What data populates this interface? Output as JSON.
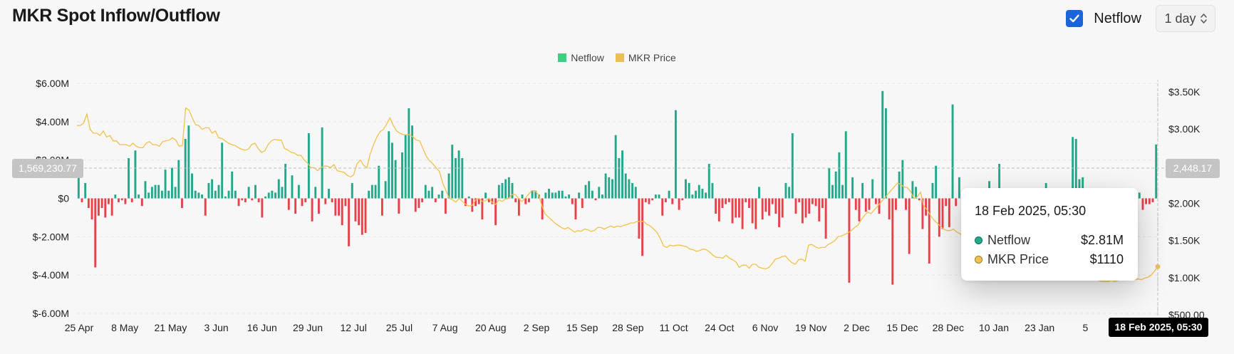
{
  "header": {
    "title": "MKR Spot Inflow/Outflow",
    "checkbox_label": "Netflow",
    "checkbox_checked": true,
    "interval": "1 day"
  },
  "colors": {
    "positive": "#22a98b",
    "negative": "#e8414a",
    "price": "#f2c14e",
    "legend_netflow": "#3ecf83",
    "legend_price": "#ecc050"
  },
  "tooltip": {
    "date": "18 Feb 2025, 05:30",
    "rows": [
      {
        "name": "Netflow",
        "value": "$2.81M",
        "color": "#22a98b"
      },
      {
        "name": "MKR Price",
        "value": "$1110",
        "color": "#f2c14e"
      }
    ]
  },
  "crosshair": {
    "left_value": "1,569,230.77",
    "right_value": "2,448.17",
    "date": "18 Feb 2025, 05:30"
  },
  "chart_data": {
    "type": "bar",
    "legend": [
      {
        "name": "Netflow",
        "color": "#3ecf83"
      },
      {
        "name": "MKR Price",
        "color": "#ecc050"
      }
    ],
    "y_left": {
      "ticks": [
        "$6.00M",
        "$4.00M",
        "$2.00M",
        "$0",
        "$-2.00M",
        "$-4.00M",
        "$-6.00M"
      ],
      "range": [
        -6000000,
        6000000
      ]
    },
    "y_right": {
      "ticks": [
        "$3.50K",
        "$3.00K",
        "$2.50K",
        "$2.00K",
        "$1.50K",
        "$1.00K",
        "$500.00"
      ],
      "range": [
        500,
        3500
      ]
    },
    "x_ticks": [
      "25 Apr",
      "8 May",
      "21 May",
      "3 Jun",
      "16 Jun",
      "29 Jun",
      "12 Jul",
      "25 Jul",
      "7 Aug",
      "20 Aug",
      "2 Sep",
      "15 Sep",
      "28 Sep",
      "11 Oct",
      "24 Oct",
      "6 Nov",
      "19 Nov",
      "2 Dec",
      "15 Dec",
      "28 Dec",
      "10 Jan",
      "23 Jan",
      "5"
    ],
    "x_range": [
      "2024-04-25",
      "2025-02-18"
    ],
    "netflow_millions": [
      1.1,
      -0.2,
      0.8,
      -0.5,
      -1.1,
      -3.6,
      -0.9,
      -0.5,
      -1.0,
      -0.3,
      -0.9,
      0.2,
      -0.2,
      -0.1,
      -0.3,
      2.1,
      -0.2,
      2.5,
      0.2,
      -0.4,
      0.9,
      0.3,
      0.6,
      0.7,
      0.7,
      0.4,
      1.5,
      0.4,
      1.6,
      0.6,
      2.0,
      -0.5,
      3.1,
      3.8,
      1.3,
      0.4,
      0.3,
      0.2,
      -0.9,
      0.8,
      1.0,
      0.4,
      0.7,
      2.9,
      0.1,
      0.4,
      1.4,
      0.4,
      -0.4,
      -0.1,
      -0.2,
      0.6,
      -0.1,
      0.7,
      -0.2,
      -1.0,
      0.1,
      0.3,
      0.4,
      0.3,
      1.0,
      0.6,
      1.8,
      -0.6,
      1.2,
      -0.8,
      0.7,
      -0.4,
      -0.2,
      3.4,
      -1.2,
      0.6,
      -0.8,
      3.7,
      -0.3,
      0.5,
      -0.2,
      -0.9,
      -0.9,
      -1.4,
      -0.4,
      -2.5,
      0.8,
      -1.2,
      -1.4,
      -1.9,
      -1.8,
      0.4,
      0.7,
      0.7,
      1.7,
      -0.9,
      0.9,
      3.5,
      2.9,
      2.0,
      -0.8,
      2.4,
      3.3,
      4.7,
      3.8,
      -0.7,
      -0.5,
      -0.2,
      0.7,
      0.4,
      0.6,
      -0.2,
      0.2,
      0.4,
      -0.8,
      1.3,
      2.8,
      2.1,
      2.5,
      2.1,
      -0.4,
      0.1,
      -0.7,
      -0.4,
      -0.3,
      -1.1,
      0.3,
      -0.2,
      -0.3,
      -1.4,
      0.7,
      0.8,
      1.0,
      1.1,
      0.8,
      -0.2,
      -0.9,
      0.2,
      -0.3,
      -0.2,
      0.4,
      0.4,
      0.2,
      -1.1,
      0.3,
      0.5,
      0.3,
      0.3,
      0.4,
      0.4,
      0.1,
      0.2,
      -0.3,
      -1.1,
      0.3,
      -0.5,
      0.7,
      0.9,
      0.4,
      -0.1,
      0.6,
      0.2,
      1.3,
      1.1,
      1.0,
      3.3,
      2.1,
      2.5,
      1.3,
      1.0,
      0.8,
      0.6,
      -2.1,
      -3.0,
      -0.2,
      -0.3,
      -0.1,
      0.2,
      0.2,
      -0.9,
      -0.2,
      0.4,
      -0.3,
      4.6,
      -0.6,
      -0.1,
      1.0,
      0.8,
      0.2,
      0.4,
      0.7,
      0.5,
      0.3,
      1.8,
      0.8,
      -0.8,
      -1.2,
      -0.5,
      -0.3,
      -0.2,
      -1.3,
      -1.0,
      -1.0,
      -1.6,
      -0.2,
      -0.5,
      -1.3,
      -1.6,
      0.6,
      -1.1,
      -0.7,
      -0.9,
      -0.3,
      -0.8,
      -1.5,
      -1.0,
      0.8,
      0.6,
      3.4,
      -0.8,
      -0.2,
      -1.3,
      -1.0,
      -0.8,
      -0.3,
      -0.4,
      -1.2,
      -0.5,
      -2.1,
      1.6,
      0.7,
      1.4,
      2.4,
      0.7,
      3.5,
      -4.4,
      1.1,
      -0.6,
      -1.2,
      0.8,
      -0.7,
      -0.6,
      1.0,
      -0.3,
      -0.8,
      5.6,
      4.7,
      -1.1,
      -4.5,
      -0.6,
      1.4,
      2.0,
      -0.6,
      -2.9,
      0.9,
      0.6,
      -0.1,
      -1.6,
      -0.9,
      -3.4,
      0.8,
      1.7,
      -2.0,
      -1.6,
      -0.4,
      -1.5,
      4.9,
      -0.4,
      1.1,
      -0.8,
      -1.2,
      -1.6,
      -0.1,
      0.3,
      0.2,
      0.1,
      -0.4,
      0.9,
      -1.6,
      -0.5,
      1.8,
      0.2,
      -0.8,
      -1.5,
      -1.2,
      -0.7,
      -0.2,
      -0.3,
      -0.5,
      -0.6,
      -0.3,
      0.3,
      -0.2,
      0.3,
      0.8,
      -0.3,
      -0.5,
      -0.2,
      -0.4,
      -0.6,
      -0.5,
      -1.2,
      3.2,
      3.1,
      1.0,
      1.1,
      -1.6,
      -1.7,
      -0.8,
      -1.2,
      -0.7,
      -0.6,
      -0.9,
      -0.5,
      -0.4,
      -0.2,
      -0.6,
      -0.3,
      -0.5,
      -0.4,
      -0.3,
      -0.8,
      0.3,
      -0.6,
      -0.3,
      -0.3,
      -0.2,
      2.81
    ],
    "price_usd": [
      2950,
      2950,
      2980,
      3100,
      2900,
      2850,
      2850,
      2820,
      2880,
      2800,
      2820,
      2750,
      2750,
      2700,
      2700,
      2700,
      2680,
      2720,
      2680,
      2660,
      2660,
      2720,
      2740,
      2700,
      2700,
      2680,
      2740,
      2750,
      2760,
      2790,
      2760,
      2680,
      2690,
      3180,
      3150,
      3050,
      2960,
      2950,
      2900,
      2920,
      2920,
      2850,
      2880,
      2790,
      2780,
      2750,
      2720,
      2700,
      2690,
      2660,
      2640,
      2630,
      2640,
      2700,
      2720,
      2650,
      2600,
      2620,
      2700,
      2750,
      2770,
      2760,
      2760,
      2650,
      2630,
      2600,
      2590,
      2560,
      2560,
      2500,
      2460,
      2400,
      2400,
      2360,
      2400,
      2420,
      2420,
      2400,
      2440,
      2360,
      2350,
      2340,
      2300,
      2280,
      2310,
      2450,
      2500,
      2430,
      2400,
      2580,
      2700,
      2800,
      2870,
      2900,
      2970,
      3050,
      2950,
      2880,
      2850,
      2830,
      2830,
      2830,
      2800,
      2760,
      2750,
      2650,
      2550,
      2490,
      2450,
      2400,
      2350,
      2200,
      2100,
      2000,
      1980,
      1950,
      2000,
      1960,
      1920,
      1900,
      1910,
      1980,
      2000,
      1960,
      1970,
      2000,
      1950,
      1920,
      1980,
      1960,
      1990,
      2000,
      2050,
      2050,
      2000,
      1960,
      2000,
      2050,
      2100,
      2100,
      2050,
      1920,
      1800,
      1760,
      1720,
      1680,
      1650,
      1620,
      1600,
      1620,
      1590,
      1560,
      1580,
      1570,
      1600,
      1590,
      1570,
      1580,
      1620,
      1620,
      1600,
      1620,
      1640,
      1620,
      1640,
      1630,
      1650,
      1660,
      1680,
      1680,
      1700,
      1700,
      1700,
      1660,
      1640,
      1600,
      1560,
      1480,
      1380,
      1360,
      1390,
      1380,
      1390,
      1390,
      1380,
      1370,
      1340,
      1330,
      1310,
      1320,
      1340,
      1330,
      1300,
      1260,
      1230,
      1230,
      1220,
      1260,
      1220,
      1200,
      1170,
      1100,
      1130,
      1130,
      1090,
      1140,
      1140,
      1100,
      1090,
      1080,
      1100,
      1150,
      1210,
      1220,
      1240,
      1250,
      1200,
      1160,
      1140,
      1200,
      1210,
      1180,
      1390,
      1400,
      1370,
      1350,
      1360,
      1360,
      1400,
      1420,
      1450,
      1500,
      1510,
      1530,
      1550,
      1580,
      1620,
      1650,
      1720,
      1780,
      1820,
      1800,
      1850,
      1900,
      1950,
      2000,
      2050,
      2100,
      2150,
      2200,
      2180,
      2150,
      2140,
      2090,
      2000,
      2020,
      2080,
      1900,
      1850,
      1780,
      1720,
      1680,
      1640,
      1600,
      1580,
      1580,
      1600,
      1560,
      1540,
      1500,
      1520,
      1480,
      1440,
      1420,
      1400,
      1380,
      1360,
      1340,
      1300,
      1280,
      1260,
      1230,
      1200,
      1180,
      1160,
      1140,
      1120,
      1100,
      1100,
      1080,
      1070,
      1060,
      1040,
      1030,
      1020,
      1020,
      1010,
      1000,
      1000,
      990,
      990,
      980,
      970,
      960,
      960,
      950,
      950,
      940,
      950,
      940,
      930,
      920,
      920,
      920,
      930,
      920,
      930,
      940,
      930,
      950,
      940,
      940,
      950,
      940,
      960,
      970,
      1000,
      1050,
      1110
    ]
  }
}
